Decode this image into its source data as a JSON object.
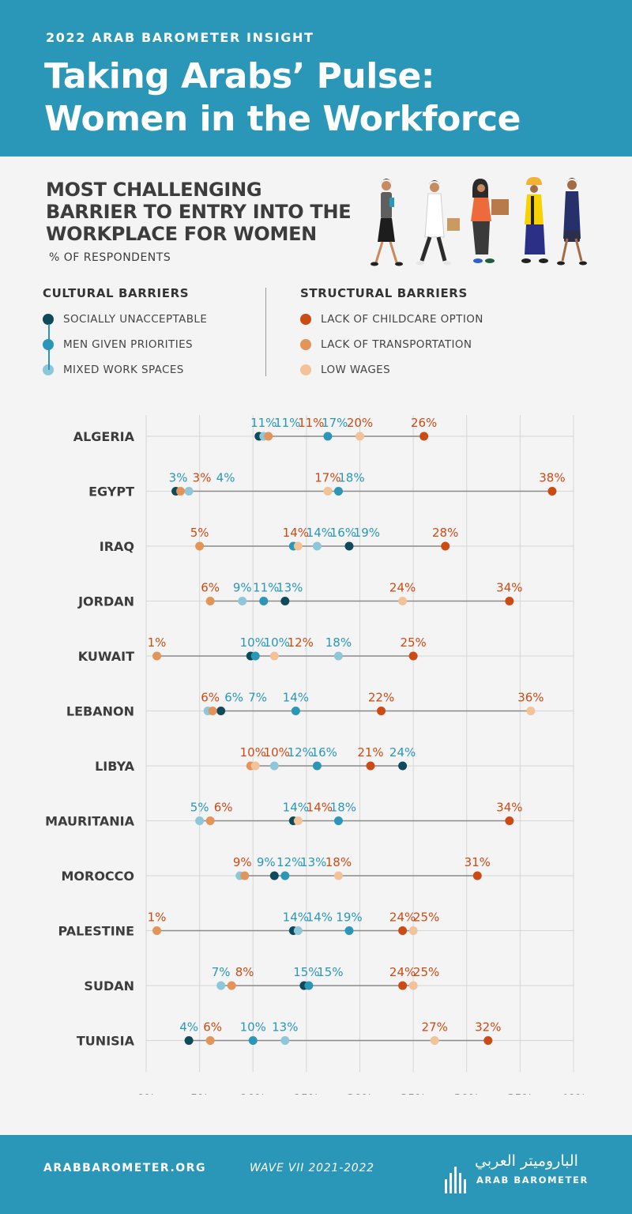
{
  "header": {
    "kicker": "2022 ARAB BAROMETER INSIGHT",
    "title_line1": "Taking Arabs’ Pulse:",
    "title_line2": "Women in the Workforce"
  },
  "section": {
    "title_line1": "MOST CHALLENGING",
    "title_line2": "BARRIER TO ENTRY INTO THE",
    "title_line3": "WORKPLACE FOR WOMEN",
    "unit": "% OF RESPONDENTS"
  },
  "legend": {
    "cultural_title": "CULTURAL BARRIERS",
    "structural_title": "STRUCTURAL BARRIERS",
    "cultural": [
      {
        "label": "SOCIALLY UNACCEPTABLE",
        "color": "#0f4a5a"
      },
      {
        "label": "MEN GIVEN PRIORITIES",
        "color": "#2a97b9"
      },
      {
        "label": "MIXED WORK SPACES",
        "color": "#8ec7da"
      }
    ],
    "structural": [
      {
        "label": "LACK OF CHILDCARE OPTION",
        "color": "#cc4a14"
      },
      {
        "label": "LACK OF TRANSPORTATION",
        "color": "#e39459"
      },
      {
        "label": "LOW WAGES",
        "color": "#f2c298"
      }
    ]
  },
  "chart_data": {
    "type": "scatter",
    "title": "MOST CHALLENGING BARRIER TO ENTRY INTO THE WORKPLACE FOR WOMEN",
    "unit": "% OF RESPONDENTS",
    "xlim": [
      0,
      40
    ],
    "xticks": [
      "0%",
      "5%",
      "10%",
      "15%",
      "20%",
      "25%",
      "30%",
      "35%",
      "40%"
    ],
    "grid": true,
    "categories": [
      "ALGERIA",
      "EGYPT",
      "IRAQ",
      "JORDAN",
      "KUWAIT",
      "LEBANON",
      "LIBYA",
      "MAURITANIA",
      "MOROCCO",
      "PALESTINE",
      "SUDAN",
      "TUNISIA"
    ],
    "series": [
      {
        "name": "SOCIALLY UNACCEPTABLE",
        "group": "cultural",
        "color": "#0f4a5a",
        "values": [
          11,
          3,
          19,
          13,
          10,
          7,
          24,
          14,
          12,
          14,
          15,
          4
        ]
      },
      {
        "name": "MEN GIVEN PRIORITIES",
        "group": "cultural",
        "color": "#2a97b9",
        "values": [
          17,
          18,
          14,
          11,
          10,
          14,
          16,
          18,
          13,
          19,
          15,
          10
        ]
      },
      {
        "name": "MIXED WORK SPACES",
        "group": "cultural",
        "color": "#8ec7da",
        "values": [
          11,
          4,
          16,
          9,
          18,
          6,
          12,
          5,
          9,
          14,
          7,
          13
        ]
      },
      {
        "name": "LACK OF CHILDCARE OPTION",
        "group": "structural",
        "color": "#cc4a14",
        "values": [
          26,
          38,
          28,
          34,
          25,
          22,
          21,
          34,
          31,
          24,
          24,
          32
        ]
      },
      {
        "name": "LACK OF TRANSPORTATION",
        "group": "structural",
        "color": "#e39459",
        "values": [
          11,
          3,
          5,
          6,
          1,
          6,
          10,
          6,
          9,
          1,
          8,
          6
        ]
      },
      {
        "name": "LOW WAGES",
        "group": "structural",
        "color": "#f2c298",
        "values": [
          20,
          17,
          14,
          24,
          12,
          36,
          10,
          14,
          18,
          25,
          25,
          27
        ]
      }
    ],
    "labels": [
      [
        {
          "text": "11%",
          "group": "cultural"
        },
        {
          "text": "11%",
          "group": "cultural"
        },
        {
          "text": "11%",
          "group": "structural"
        },
        {
          "text": "17%",
          "group": "cultural"
        },
        {
          "text": "20%",
          "group": "structural"
        },
        {
          "text": "26%",
          "group": "structural"
        }
      ],
      [
        {
          "text": "3%",
          "group": "cultural"
        },
        {
          "text": "3%",
          "group": "structural"
        },
        {
          "text": "4%",
          "group": "cultural"
        },
        {
          "text": "17%",
          "group": "structural"
        },
        {
          "text": "18%",
          "group": "cultural"
        },
        {
          "text": "38%",
          "group": "structural"
        }
      ],
      [
        {
          "text": "5%",
          "group": "structural"
        },
        {
          "text": "14%",
          "group": "structural"
        },
        {
          "text": "14%",
          "group": "cultural"
        },
        {
          "text": "16%",
          "group": "cultural"
        },
        {
          "text": "19%",
          "group": "cultural"
        },
        {
          "text": "28%",
          "group": "structural"
        }
      ],
      [
        {
          "text": "6%",
          "group": "structural"
        },
        {
          "text": "9%",
          "group": "cultural"
        },
        {
          "text": "11%",
          "group": "cultural"
        },
        {
          "text": "13%",
          "group": "cultural"
        },
        {
          "text": "24%",
          "group": "structural"
        },
        {
          "text": "34%",
          "group": "structural"
        }
      ],
      [
        {
          "text": "1%",
          "group": "structural"
        },
        {
          "text": "10%",
          "group": "cultural"
        },
        {
          "text": "10%",
          "group": "cultural"
        },
        {
          "text": "12%",
          "group": "structural"
        },
        {
          "text": "18%",
          "group": "cultural"
        },
        {
          "text": "25%",
          "group": "structural"
        }
      ],
      [
        {
          "text": "6%",
          "group": "structural"
        },
        {
          "text": "6%",
          "group": "cultural"
        },
        {
          "text": "7%",
          "group": "cultural"
        },
        {
          "text": "14%",
          "group": "cultural"
        },
        {
          "text": "22%",
          "group": "structural"
        },
        {
          "text": "36%",
          "group": "structural"
        }
      ],
      [
        {
          "text": "10%",
          "group": "structural"
        },
        {
          "text": "10%",
          "group": "structural"
        },
        {
          "text": "12%",
          "group": "cultural"
        },
        {
          "text": "16%",
          "group": "cultural"
        },
        {
          "text": "21%",
          "group": "structural"
        },
        {
          "text": "24%",
          "group": "cultural"
        }
      ],
      [
        {
          "text": "5%",
          "group": "cultural"
        },
        {
          "text": "6%",
          "group": "structural"
        },
        {
          "text": "14%",
          "group": "cultural"
        },
        {
          "text": "14%",
          "group": "structural"
        },
        {
          "text": "18%",
          "group": "cultural"
        },
        {
          "text": "34%",
          "group": "structural"
        }
      ],
      [
        {
          "text": "9%",
          "group": "structural"
        },
        {
          "text": "9%",
          "group": "cultural"
        },
        {
          "text": "12%",
          "group": "cultural"
        },
        {
          "text": "13%",
          "group": "cultural"
        },
        {
          "text": "18%",
          "group": "structural"
        },
        {
          "text": "31%",
          "group": "structural"
        }
      ],
      [
        {
          "text": "1%",
          "group": "structural"
        },
        {
          "text": "14%",
          "group": "cultural"
        },
        {
          "text": "14%",
          "group": "cultural"
        },
        {
          "text": "19%",
          "group": "cultural"
        },
        {
          "text": "24%",
          "group": "structural"
        },
        {
          "text": "25%",
          "group": "structural"
        }
      ],
      [
        {
          "text": "7%",
          "group": "cultural"
        },
        {
          "text": "8%",
          "group": "structural"
        },
        {
          "text": "15%",
          "group": "cultural"
        },
        {
          "text": "15%",
          "group": "cultural"
        },
        {
          "text": "24%",
          "group": "structural"
        },
        {
          "text": "25%",
          "group": "structural"
        }
      ],
      [
        {
          "text": "4%",
          "group": "cultural"
        },
        {
          "text": "6%",
          "group": "structural"
        },
        {
          "text": "10%",
          "group": "cultural"
        },
        {
          "text": "13%",
          "group": "cultural"
        },
        {
          "text": "27%",
          "group": "structural"
        },
        {
          "text": "32%",
          "group": "structural"
        }
      ]
    ],
    "label_colors": {
      "cultural": "#2a97b9",
      "structural": "#cc4a14"
    },
    "line_color": "#8a8a8a",
    "grid_color": "#d6d6d6"
  },
  "footer": {
    "url": "ARABBAROMETER.ORG",
    "wave": "WAVE VII 2021-2022",
    "brand_arabic": "الباروميتر العربي",
    "brand_english": "ARAB BAROMETER"
  },
  "colors": {
    "header_bg": "#2a97b9",
    "page_bg": "#f4f4f4",
    "text_dark": "#3c3c3c"
  }
}
